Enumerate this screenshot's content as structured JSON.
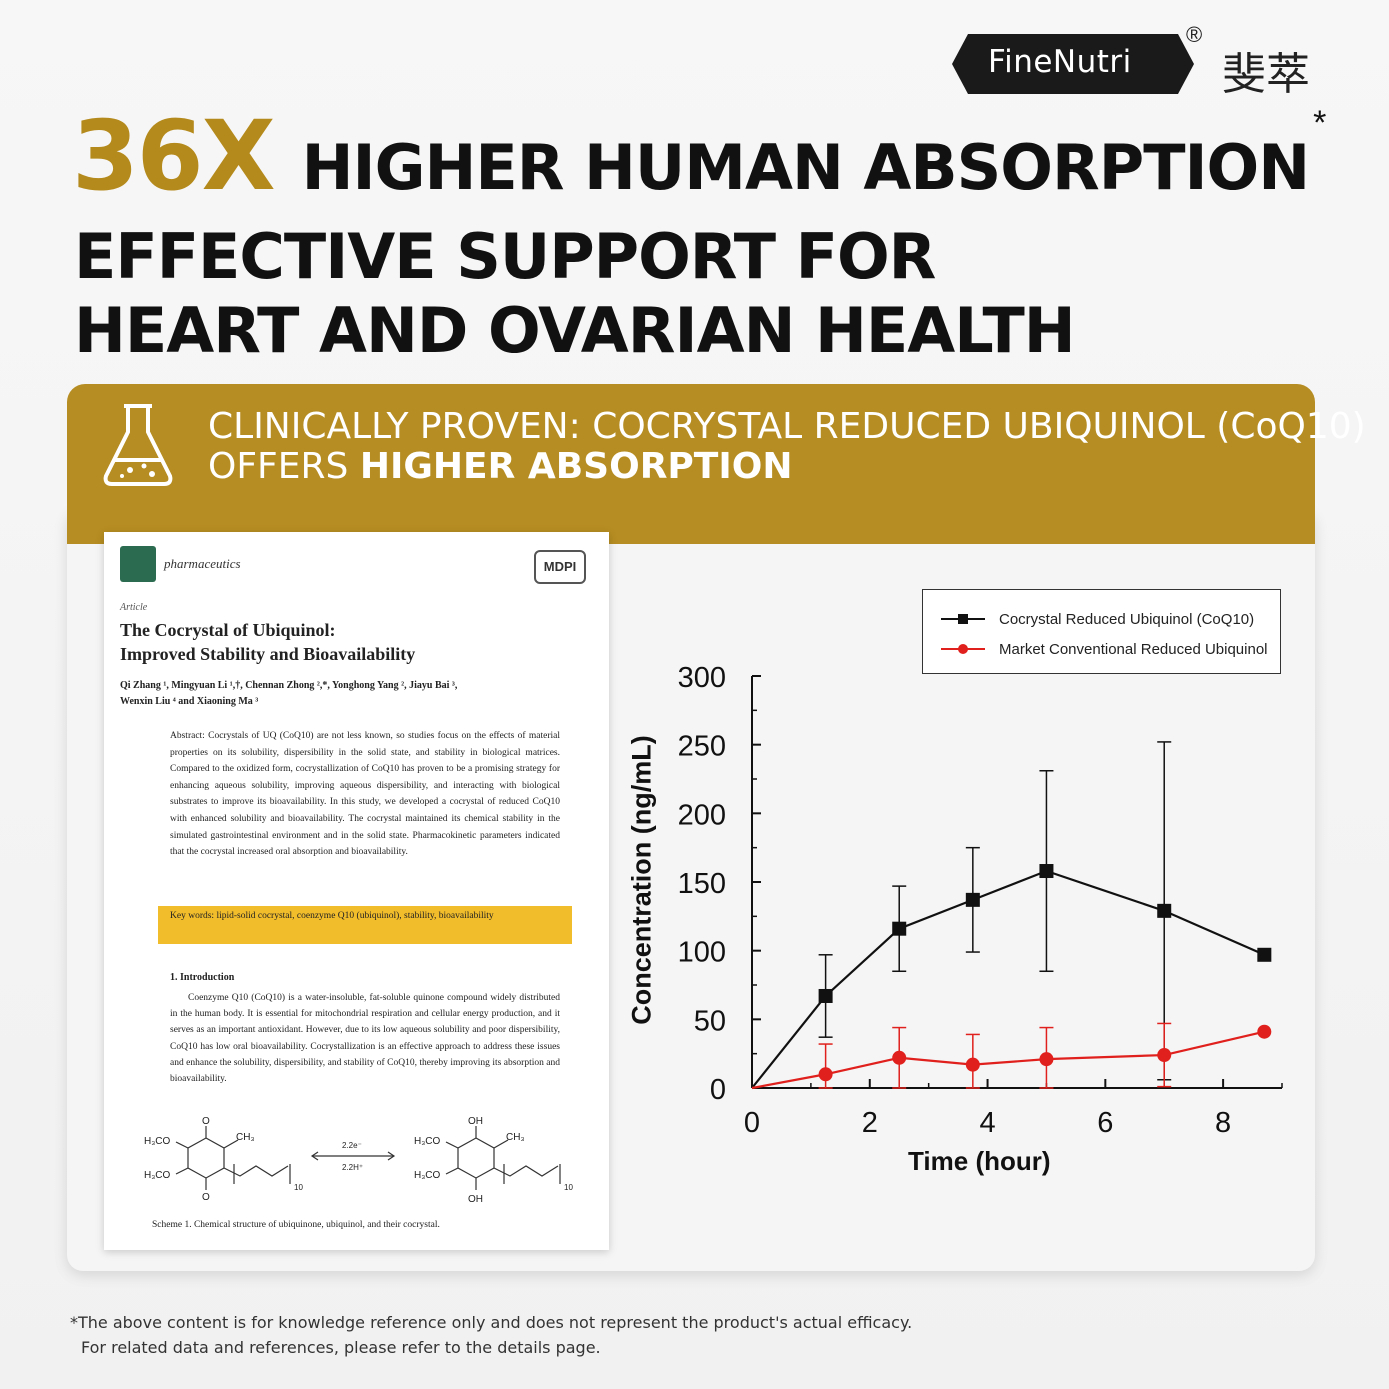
{
  "brand": {
    "name": "FineNutri",
    "registered": "®",
    "chinese": "斐萃"
  },
  "headline": {
    "multiplier": "36X",
    "main": "HIGHER HUMAN ABSORPTION",
    "asterisk": "*",
    "sub_line1": "EFFECTIVE SUPPORT FOR",
    "sub_line2": "HEART AND OVARIAN HEALTH"
  },
  "banner": {
    "line1": "CLINICALLY PROVEN:  COCRYSTAL REDUCED UBIQUINOL (CoQ10)",
    "line2_prefix": "OFFERS ",
    "line2_bold": "HIGHER ABSORPTION",
    "icon": "flask-icon"
  },
  "paper": {
    "journal": "pharmaceutics",
    "publisher": "MDPI",
    "article_type": "Article",
    "title_line1": "The Cocrystal of Ubiquinol:",
    "title_line2": "Improved Stability and Bioavailability",
    "authors_line1": "Qi Zhang ¹, Mingyuan Li ¹,†, Chennan Zhong ²,*, Yonghong Yang ², Jiayu Bai ³,",
    "authors_line2": "Wenxin Liu ⁴ and Xiaoning Ma ³",
    "abstract": "Abstract: Cocrystals of UQ (CoQ10) are not less known, so studies focus on the effects of material properties on its solubility, dispersibility in the solid state, and stability in biological matrices. Compared to the oxidized form, cocrystallization of CoQ10 has proven to be a promising strategy for enhancing aqueous solubility, improving aqueous dispersibility, and interacting with biological substrates to improve its bioavailability. In this study, we developed a cocrystal of reduced CoQ10 with enhanced solubility and bioavailability. The cocrystal maintained its chemical stability in the simulated gastrointestinal environment and in the solid state. Pharmacokinetic parameters indicated that the cocrystal increased oral absorption and bioavailability.",
    "keywords": "Key words: lipid-solid cocrystal, coenzyme Q10 (ubiquinol), stability, bioavailability",
    "intro_heading": "1.  Introduction",
    "intro": "Coenzyme Q10 (CoQ10) is a water-insoluble, fat-soluble quinone compound widely distributed in the human body. It is essential for mitochondrial respiration and cellular energy production, and it serves as an important antioxidant. However, due to its low aqueous solubility and poor dispersibility, CoQ10 has low oral bioavailability. Cocrystallization is an effective approach to address these issues and enhance the solubility, dispersibility, and stability of CoQ10, thereby improving its absorption and bioavailability.",
    "scheme_left_a": "H₃CO",
    "scheme_left_b": "H₃CO",
    "scheme_ch3": "CH₃",
    "scheme_n": "10",
    "scheme_arrow_top": "2.2e⁻",
    "scheme_arrow_bottom": "2.2H⁺",
    "scheme_oh": "OH",
    "scheme_o": "O",
    "caption": "Scheme 1. Chemical structure of ubiquinone, ubiquinol, and their cocrystal."
  },
  "chart_data": {
    "type": "line",
    "xlabel": "Time (hour)",
    "ylabel": "Concentration (ng/mL)",
    "xlim": [
      0,
      9
    ],
    "ylim": [
      0,
      300
    ],
    "xticks": [
      0,
      2,
      4,
      6,
      8
    ],
    "yticks": [
      0,
      50,
      100,
      150,
      200,
      250,
      300
    ],
    "legend_position": "top-right",
    "series": [
      {
        "name": "Cocrystal Reduced Ubiquinol (CoQ10)",
        "color": "#111111",
        "marker": "square",
        "x": [
          0,
          1.25,
          2.5,
          3.75,
          5,
          7,
          8.7
        ],
        "y": [
          0,
          67,
          116,
          137,
          158,
          129,
          97
        ],
        "err": [
          0,
          30,
          31,
          38,
          73,
          123,
          0
        ]
      },
      {
        "name": "Market Conventional Reduced Ubiquinol",
        "color": "#e0201c",
        "marker": "circle",
        "x": [
          0,
          1.25,
          2.5,
          3.75,
          5,
          7,
          8.7
        ],
        "y": [
          0,
          10,
          22,
          17,
          21,
          24,
          41
        ],
        "err": [
          0,
          22,
          22,
          22,
          23,
          23,
          0
        ]
      }
    ]
  },
  "footnote": {
    "line1": "*The above content is for knowledge reference only and does not represent the product's actual efficacy.",
    "line2": "For related data and references, please refer to the details page."
  },
  "colors": {
    "gold": "#b68d22",
    "headline_gold": "#b58a1c",
    "keyword_highlight": "#f2bd2b"
  }
}
